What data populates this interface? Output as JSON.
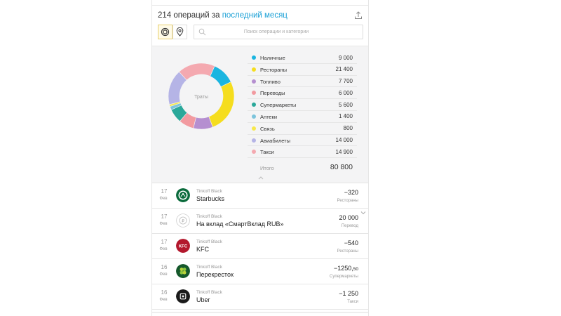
{
  "header": {
    "title_prefix": "214 операций за ",
    "title_link": "последний месяц",
    "search_placeholder": "Поиск операции и категории"
  },
  "donut": {
    "center_label": "Траты"
  },
  "chart_data": {
    "type": "pie",
    "categories": [
      "Наличные",
      "Рестораны",
      "Топливо",
      "Переводы",
      "Супермаркеты",
      "Аптеки",
      "Связь",
      "Авиабилеты",
      "Такси"
    ],
    "values": [
      9000,
      21400,
      7700,
      6000,
      5600,
      1400,
      800,
      14000,
      14900
    ],
    "colors": [
      "#1ab5e0",
      "#f5dd1e",
      "#b58fd0",
      "#f29aa0",
      "#2aa89a",
      "#7cc4dc",
      "#f7e84a",
      "#b5b4e6",
      "#f4a9b0"
    ]
  },
  "legend": {
    "items": [
      {
        "label": "Наличные",
        "value": "9 000",
        "color": "#1ab5e0"
      },
      {
        "label": "Рестораны",
        "value": "21 400",
        "color": "#f5dd1e"
      },
      {
        "label": "Топливо",
        "value": "7 700",
        "color": "#b58fd0"
      },
      {
        "label": "Переводы",
        "value": "6 000",
        "color": "#f29aa0"
      },
      {
        "label": "Супермаркеты",
        "value": "5 600",
        "color": "#2aa89a"
      },
      {
        "label": "Аптеки",
        "value": "1 400",
        "color": "#7cc4dc"
      },
      {
        "label": "Связь",
        "value": "800",
        "color": "#f7e84a"
      },
      {
        "label": "Авиабилеты",
        "value": "14 000",
        "color": "#b5b4e6"
      },
      {
        "label": "Такси",
        "value": "14 900",
        "color": "#f4a9b0"
      }
    ],
    "total_label": "Итого",
    "total_value": "80 800"
  },
  "operations": [
    {
      "day": "17",
      "month": "Фев",
      "account": "Tinkoff Black",
      "name": "Starbucks",
      "amount": "−320",
      "amount_cents": "",
      "category": "Рестораны",
      "logo": "starbucks-logo"
    },
    {
      "day": "17",
      "month": "Фев",
      "account": "Tinkoff Black",
      "name": "На вклад «СмартВклад RUB»",
      "amount": "20 000",
      "amount_cents": "",
      "category": "Перевод",
      "logo": "deposit-logo"
    },
    {
      "day": "17",
      "month": "Фев",
      "account": "Tinkoff Black",
      "name": "KFC",
      "amount": "−540",
      "amount_cents": "",
      "category": "Рестораны",
      "logo": "kfc-logo"
    },
    {
      "day": "16",
      "month": "Фев",
      "account": "Tinkoff Black",
      "name": "Перекресток",
      "amount": "−1250,",
      "amount_cents": "50",
      "category": "Супермаркеты",
      "logo": "perekrestok-logo"
    },
    {
      "day": "16",
      "month": "Фев",
      "account": "Tinkoff Black",
      "name": "Uber",
      "amount": "−1 250",
      "amount_cents": "",
      "category": "Такси",
      "logo": "uber-logo"
    }
  ]
}
